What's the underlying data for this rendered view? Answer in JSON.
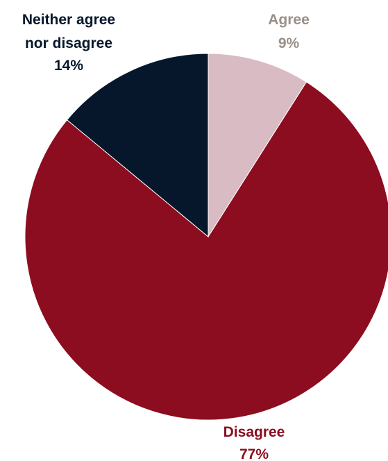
{
  "chart_data": {
    "type": "pie",
    "title": "",
    "slices": [
      {
        "label": "Agree",
        "value": 9,
        "value_label": "9%",
        "color": "#d9bcc3",
        "label_color": "#9b8f88"
      },
      {
        "label": "Disagree",
        "value": 77,
        "value_label": "77%",
        "color": "#8b0d1f",
        "label_color": "#8b0d1f"
      },
      {
        "label": "Neither agree nor disagree",
        "value": 14,
        "value_label": "14%",
        "color": "#06172b",
        "label_color": "#06172b"
      }
    ],
    "start_angle": "12 o'clock",
    "direction": "clockwise",
    "legend": "none",
    "data_labels": "outside, category name and percent"
  }
}
